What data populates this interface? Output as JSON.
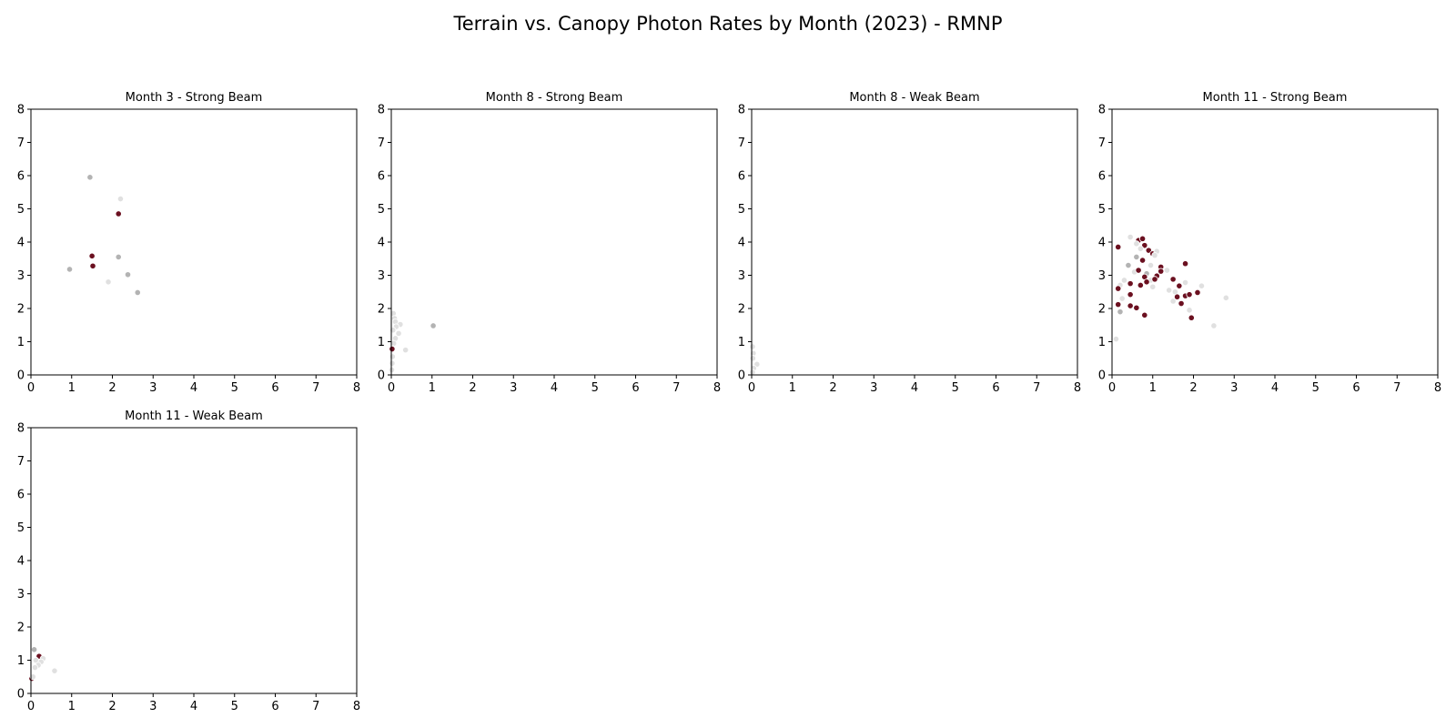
{
  "figure": {
    "title": "Terrain vs. Canopy Photon Rates by Month (2023) - RMNP"
  },
  "colors": {
    "low": "#e0e0e0",
    "mid": "#b3b3b3",
    "high": "#6b1020"
  },
  "chart_data": [
    {
      "type": "scatter",
      "title": "Month 3 - Strong Beam",
      "xlim": [
        0,
        8
      ],
      "ylim": [
        0,
        8
      ],
      "xticks": [
        0,
        1,
        2,
        3,
        4,
        5,
        6,
        7,
        8
      ],
      "yticks": [
        0,
        1,
        2,
        3,
        4,
        5,
        6,
        7,
        8
      ],
      "grid": false,
      "points": [
        {
          "x": 1.45,
          "y": 5.95,
          "shade": "mid"
        },
        {
          "x": 2.2,
          "y": 5.3,
          "shade": "low"
        },
        {
          "x": 2.15,
          "y": 4.85,
          "shade": "high"
        },
        {
          "x": 1.5,
          "y": 3.58,
          "shade": "high"
        },
        {
          "x": 2.15,
          "y": 3.55,
          "shade": "mid"
        },
        {
          "x": 1.52,
          "y": 3.28,
          "shade": "high"
        },
        {
          "x": 0.95,
          "y": 3.18,
          "shade": "mid"
        },
        {
          "x": 2.38,
          "y": 3.02,
          "shade": "mid"
        },
        {
          "x": 1.9,
          "y": 2.8,
          "shade": "low"
        },
        {
          "x": 2.62,
          "y": 2.48,
          "shade": "mid"
        }
      ]
    },
    {
      "type": "scatter",
      "title": "Month 8 - Strong Beam",
      "xlim": [
        0,
        8
      ],
      "ylim": [
        0,
        8
      ],
      "xticks": [
        0,
        1,
        2,
        3,
        4,
        5,
        6,
        7,
        8
      ],
      "yticks": [
        0,
        1,
        2,
        3,
        4,
        5,
        6,
        7,
        8
      ],
      "grid": false,
      "points": [
        {
          "x": 0.05,
          "y": 1.85,
          "shade": "low"
        },
        {
          "x": 0.08,
          "y": 1.7,
          "shade": "low"
        },
        {
          "x": 0.1,
          "y": 1.6,
          "shade": "low"
        },
        {
          "x": 0.22,
          "y": 1.52,
          "shade": "low"
        },
        {
          "x": 0.12,
          "y": 1.45,
          "shade": "low"
        },
        {
          "x": 0.04,
          "y": 1.35,
          "shade": "low"
        },
        {
          "x": 0.18,
          "y": 1.25,
          "shade": "low"
        },
        {
          "x": 0.1,
          "y": 1.1,
          "shade": "low"
        },
        {
          "x": 0.06,
          "y": 0.95,
          "shade": "low"
        },
        {
          "x": 0.02,
          "y": 0.8,
          "shade": "low"
        },
        {
          "x": 0.03,
          "y": 0.55,
          "shade": "low"
        },
        {
          "x": 0.02,
          "y": 0.35,
          "shade": "low"
        },
        {
          "x": 0.01,
          "y": 0.15,
          "shade": "low"
        },
        {
          "x": 0.35,
          "y": 0.75,
          "shade": "low"
        },
        {
          "x": 1.03,
          "y": 1.48,
          "shade": "mid"
        },
        {
          "x": 0.02,
          "y": 0.78,
          "shade": "high"
        }
      ]
    },
    {
      "type": "scatter",
      "title": "Month 8 - Weak Beam",
      "xlim": [
        0,
        8
      ],
      "ylim": [
        0,
        8
      ],
      "xticks": [
        0,
        1,
        2,
        3,
        4,
        5,
        6,
        7,
        8
      ],
      "yticks": [
        0,
        1,
        2,
        3,
        4,
        5,
        6,
        7,
        8
      ],
      "grid": false,
      "points": [
        {
          "x": 0.02,
          "y": 0.85,
          "shade": "low"
        },
        {
          "x": 0.04,
          "y": 0.65,
          "shade": "low"
        },
        {
          "x": 0.03,
          "y": 0.5,
          "shade": "low"
        },
        {
          "x": 0.13,
          "y": 0.32,
          "shade": "low"
        },
        {
          "x": 0.05,
          "y": 0.2,
          "shade": "low"
        },
        {
          "x": 0.02,
          "y": 0.08,
          "shade": "low"
        }
      ]
    },
    {
      "type": "scatter",
      "title": "Month 11 - Strong Beam",
      "xlim": [
        0,
        8
      ],
      "ylim": [
        0,
        8
      ],
      "xticks": [
        0,
        1,
        2,
        3,
        4,
        5,
        6,
        7,
        8
      ],
      "yticks": [
        0,
        1,
        2,
        3,
        4,
        5,
        6,
        7,
        8
      ],
      "grid": false,
      "points": [
        {
          "x": 0.15,
          "y": 3.85,
          "shade": "high"
        },
        {
          "x": 0.45,
          "y": 4.15,
          "shade": "low"
        },
        {
          "x": 0.65,
          "y": 4.05,
          "shade": "high"
        },
        {
          "x": 0.75,
          "y": 4.1,
          "shade": "high"
        },
        {
          "x": 0.6,
          "y": 3.95,
          "shade": "low"
        },
        {
          "x": 0.8,
          "y": 3.9,
          "shade": "high"
        },
        {
          "x": 0.7,
          "y": 3.8,
          "shade": "low"
        },
        {
          "x": 0.9,
          "y": 3.75,
          "shade": "high"
        },
        {
          "x": 1.0,
          "y": 3.65,
          "shade": "high"
        },
        {
          "x": 1.1,
          "y": 3.72,
          "shade": "low"
        },
        {
          "x": 1.05,
          "y": 3.6,
          "shade": "low"
        },
        {
          "x": 0.6,
          "y": 3.55,
          "shade": "mid"
        },
        {
          "x": 0.75,
          "y": 3.45,
          "shade": "high"
        },
        {
          "x": 0.4,
          "y": 3.3,
          "shade": "mid"
        },
        {
          "x": 1.2,
          "y": 3.25,
          "shade": "high"
        },
        {
          "x": 0.95,
          "y": 3.3,
          "shade": "low"
        },
        {
          "x": 0.55,
          "y": 3.1,
          "shade": "low"
        },
        {
          "x": 0.65,
          "y": 3.15,
          "shade": "high"
        },
        {
          "x": 1.2,
          "y": 3.12,
          "shade": "high"
        },
        {
          "x": 1.35,
          "y": 3.15,
          "shade": "low"
        },
        {
          "x": 0.85,
          "y": 3.05,
          "shade": "mid"
        },
        {
          "x": 0.8,
          "y": 2.95,
          "shade": "high"
        },
        {
          "x": 1.1,
          "y": 2.98,
          "shade": "high"
        },
        {
          "x": 0.95,
          "y": 2.85,
          "shade": "low"
        },
        {
          "x": 1.05,
          "y": 2.88,
          "shade": "high"
        },
        {
          "x": 1.5,
          "y": 2.88,
          "shade": "high"
        },
        {
          "x": 0.3,
          "y": 2.85,
          "shade": "low"
        },
        {
          "x": 0.45,
          "y": 2.75,
          "shade": "high"
        },
        {
          "x": 0.7,
          "y": 2.7,
          "shade": "high"
        },
        {
          "x": 0.85,
          "y": 2.8,
          "shade": "high"
        },
        {
          "x": 0.2,
          "y": 2.7,
          "shade": "low"
        },
        {
          "x": 0.15,
          "y": 2.6,
          "shade": "high"
        },
        {
          "x": 1.0,
          "y": 2.65,
          "shade": "low"
        },
        {
          "x": 1.65,
          "y": 2.68,
          "shade": "high"
        },
        {
          "x": 2.2,
          "y": 2.68,
          "shade": "low"
        },
        {
          "x": 1.4,
          "y": 2.55,
          "shade": "low"
        },
        {
          "x": 1.55,
          "y": 2.5,
          "shade": "low"
        },
        {
          "x": 2.1,
          "y": 2.48,
          "shade": "high"
        },
        {
          "x": 0.45,
          "y": 2.42,
          "shade": "high"
        },
        {
          "x": 1.8,
          "y": 2.38,
          "shade": "high"
        },
        {
          "x": 1.9,
          "y": 2.42,
          "shade": "high"
        },
        {
          "x": 1.6,
          "y": 2.35,
          "shade": "high"
        },
        {
          "x": 0.25,
          "y": 2.3,
          "shade": "low"
        },
        {
          "x": 1.5,
          "y": 2.22,
          "shade": "low"
        },
        {
          "x": 1.7,
          "y": 2.15,
          "shade": "high"
        },
        {
          "x": 0.15,
          "y": 2.12,
          "shade": "high"
        },
        {
          "x": 0.45,
          "y": 2.08,
          "shade": "high"
        },
        {
          "x": 0.6,
          "y": 2.02,
          "shade": "high"
        },
        {
          "x": 1.9,
          "y": 1.95,
          "shade": "low"
        },
        {
          "x": 0.2,
          "y": 1.9,
          "shade": "mid"
        },
        {
          "x": 0.8,
          "y": 1.8,
          "shade": "high"
        },
        {
          "x": 1.95,
          "y": 1.72,
          "shade": "high"
        },
        {
          "x": 1.8,
          "y": 3.35,
          "shade": "high"
        },
        {
          "x": 1.8,
          "y": 2.78,
          "shade": "low"
        },
        {
          "x": 2.8,
          "y": 2.32,
          "shade": "low"
        },
        {
          "x": 2.5,
          "y": 1.48,
          "shade": "low"
        },
        {
          "x": 0.1,
          "y": 1.08,
          "shade": "low"
        }
      ]
    },
    {
      "type": "scatter",
      "title": "Month 11 - Weak Beam",
      "xlim": [
        0,
        8
      ],
      "ylim": [
        0,
        8
      ],
      "xticks": [
        0,
        1,
        2,
        3,
        4,
        5,
        6,
        7,
        8
      ],
      "yticks": [
        0,
        1,
        2,
        3,
        4,
        5,
        6,
        7,
        8
      ],
      "grid": false,
      "points": [
        {
          "x": 0.08,
          "y": 1.32,
          "shade": "mid"
        },
        {
          "x": 0.2,
          "y": 1.12,
          "shade": "high"
        },
        {
          "x": 0.3,
          "y": 1.05,
          "shade": "low"
        },
        {
          "x": 0.12,
          "y": 1.0,
          "shade": "low"
        },
        {
          "x": 0.25,
          "y": 0.95,
          "shade": "low"
        },
        {
          "x": 0.18,
          "y": 0.85,
          "shade": "low"
        },
        {
          "x": 0.1,
          "y": 0.78,
          "shade": "low"
        },
        {
          "x": 0.58,
          "y": 0.68,
          "shade": "low"
        },
        {
          "x": 0.02,
          "y": 0.45,
          "shade": "high"
        },
        {
          "x": 0.05,
          "y": 0.5,
          "shade": "low"
        }
      ]
    }
  ]
}
